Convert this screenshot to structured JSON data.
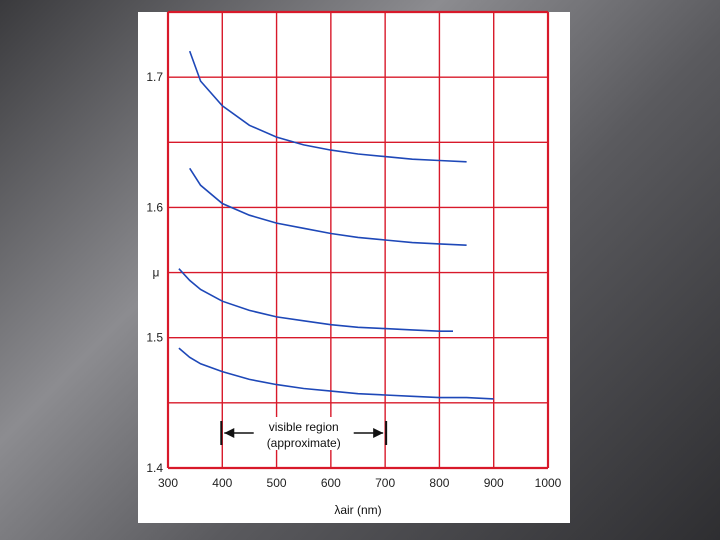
{
  "chart_data": {
    "type": "line",
    "title": "",
    "xlabel": "λair (nm)",
    "ylabel": "μ",
    "xlim": [
      300,
      1000
    ],
    "ylim": [
      1.4,
      1.75
    ],
    "x_ticks": [
      "300",
      "400",
      "500",
      "600",
      "700",
      "800",
      "900",
      "1000"
    ],
    "y_ticks": [
      {
        "value": 1.4,
        "label": "1.4"
      },
      {
        "value": 1.5,
        "label": "1.5"
      },
      {
        "value": 1.6,
        "label": "1.6"
      },
      {
        "value": 1.7,
        "label": "1.7"
      }
    ],
    "grid": true,
    "grid_color": "#d8192a",
    "curve_color": "#1e48b8",
    "series": [
      {
        "x": [
          340,
          360,
          400,
          450,
          500,
          550,
          600,
          650,
          700,
          750,
          800,
          850
        ],
        "y": [
          1.72,
          1.697,
          1.678,
          1.663,
          1.654,
          1.648,
          1.644,
          1.641,
          1.639,
          1.637,
          1.636,
          1.635
        ]
      },
      {
        "x": [
          340,
          360,
          400,
          450,
          500,
          550,
          600,
          650,
          700,
          750,
          800,
          850
        ],
        "y": [
          1.63,
          1.617,
          1.603,
          1.594,
          1.588,
          1.584,
          1.58,
          1.577,
          1.575,
          1.573,
          1.572,
          1.571
        ]
      },
      {
        "x": [
          320,
          340,
          360,
          400,
          450,
          500,
          550,
          600,
          650,
          700,
          750,
          800,
          825
        ],
        "y": [
          1.553,
          1.544,
          1.537,
          1.528,
          1.521,
          1.516,
          1.513,
          1.51,
          1.508,
          1.507,
          1.506,
          1.505,
          1.505
        ]
      },
      {
        "x": [
          320,
          340,
          360,
          400,
          450,
          500,
          550,
          600,
          650,
          700,
          750,
          800,
          850,
          900
        ],
        "y": [
          1.492,
          1.485,
          1.48,
          1.474,
          1.468,
          1.464,
          1.461,
          1.459,
          1.457,
          1.456,
          1.455,
          1.454,
          1.454,
          1.453
        ]
      }
    ],
    "annotations": {
      "region_line1": "visible region",
      "region_line2": "(approximate)",
      "region_x": [
        400,
        700
      ]
    }
  }
}
